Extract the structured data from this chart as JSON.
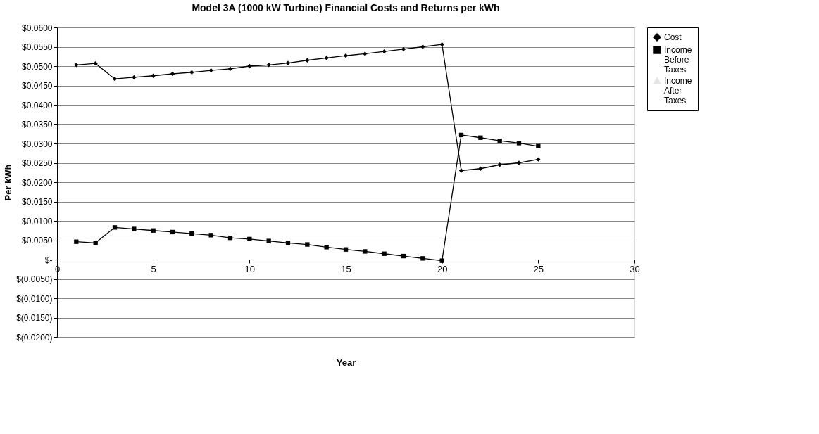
{
  "chart_data": {
    "type": "line",
    "title": "Model 3A (1000 kW Turbine) Financial Costs and Returns per kWh",
    "xlabel": "Year",
    "ylabel": "Per kWh",
    "x": [
      1,
      2,
      3,
      4,
      5,
      6,
      7,
      8,
      9,
      10,
      11,
      12,
      13,
      14,
      15,
      16,
      17,
      18,
      19,
      20,
      21,
      22,
      23,
      24,
      25
    ],
    "series": [
      {
        "name": "Cost",
        "color": "#000000",
        "marker": "diamond",
        "values": [
          0.0503,
          0.0507,
          0.0467,
          0.0471,
          0.0475,
          0.048,
          0.0484,
          0.0489,
          0.0493,
          0.05,
          0.0503,
          0.0508,
          0.0515,
          0.0521,
          0.0527,
          0.0532,
          0.0538,
          0.0544,
          0.055,
          0.0556,
          0.023,
          0.0235,
          0.0245,
          0.025,
          0.0259
        ]
      },
      {
        "name": "Income Before Taxes",
        "color": "#000000",
        "marker": "square",
        "values": [
          0.0046,
          0.0043,
          0.0083,
          0.0079,
          0.0075,
          0.0071,
          0.0067,
          0.0063,
          0.0056,
          0.0053,
          0.0048,
          0.0043,
          0.0039,
          0.0032,
          0.0026,
          0.0021,
          0.0015,
          0.0009,
          0.0003,
          -0.0003,
          0.0322,
          0.0315,
          0.0307,
          0.0301,
          0.0293
        ]
      },
      {
        "name": "Income After Taxes",
        "color": "#e6e6e6",
        "marker": "triangle",
        "values": [
          null,
          null,
          null,
          null,
          null,
          null,
          null,
          null,
          null,
          null,
          null,
          null,
          null,
          null,
          null,
          null,
          null,
          null,
          null,
          null,
          null,
          null,
          null,
          null,
          null
        ]
      }
    ],
    "xlim": [
      0,
      30
    ],
    "xticks": [
      0,
      5,
      10,
      15,
      20,
      25,
      30
    ],
    "ylim": [
      -0.02,
      0.06
    ],
    "yticks": [
      {
        "value": -0.02,
        "label": "$(0.0200)"
      },
      {
        "value": -0.015,
        "label": "$(0.0150)"
      },
      {
        "value": -0.01,
        "label": "$(0.0100)"
      },
      {
        "value": -0.005,
        "label": "$(0.0050)"
      },
      {
        "value": 0,
        "label": "$-"
      },
      {
        "value": 0.005,
        "label": "$0.0050"
      },
      {
        "value": 0.01,
        "label": "$0.0100"
      },
      {
        "value": 0.015,
        "label": "$0.0150"
      },
      {
        "value": 0.02,
        "label": "$0.0200"
      },
      {
        "value": 0.025,
        "label": "$0.0250"
      },
      {
        "value": 0.03,
        "label": "$0.0300"
      },
      {
        "value": 0.035,
        "label": "$0.0350"
      },
      {
        "value": 0.04,
        "label": "$0.0400"
      },
      {
        "value": 0.045,
        "label": "$0.0450"
      },
      {
        "value": 0.05,
        "label": "$0.0500"
      },
      {
        "value": 0.055,
        "label": "$0.0550"
      },
      {
        "value": 0.06,
        "label": "$0.0600"
      }
    ],
    "grid": "y",
    "legend": "right",
    "line_style": "solid"
  }
}
